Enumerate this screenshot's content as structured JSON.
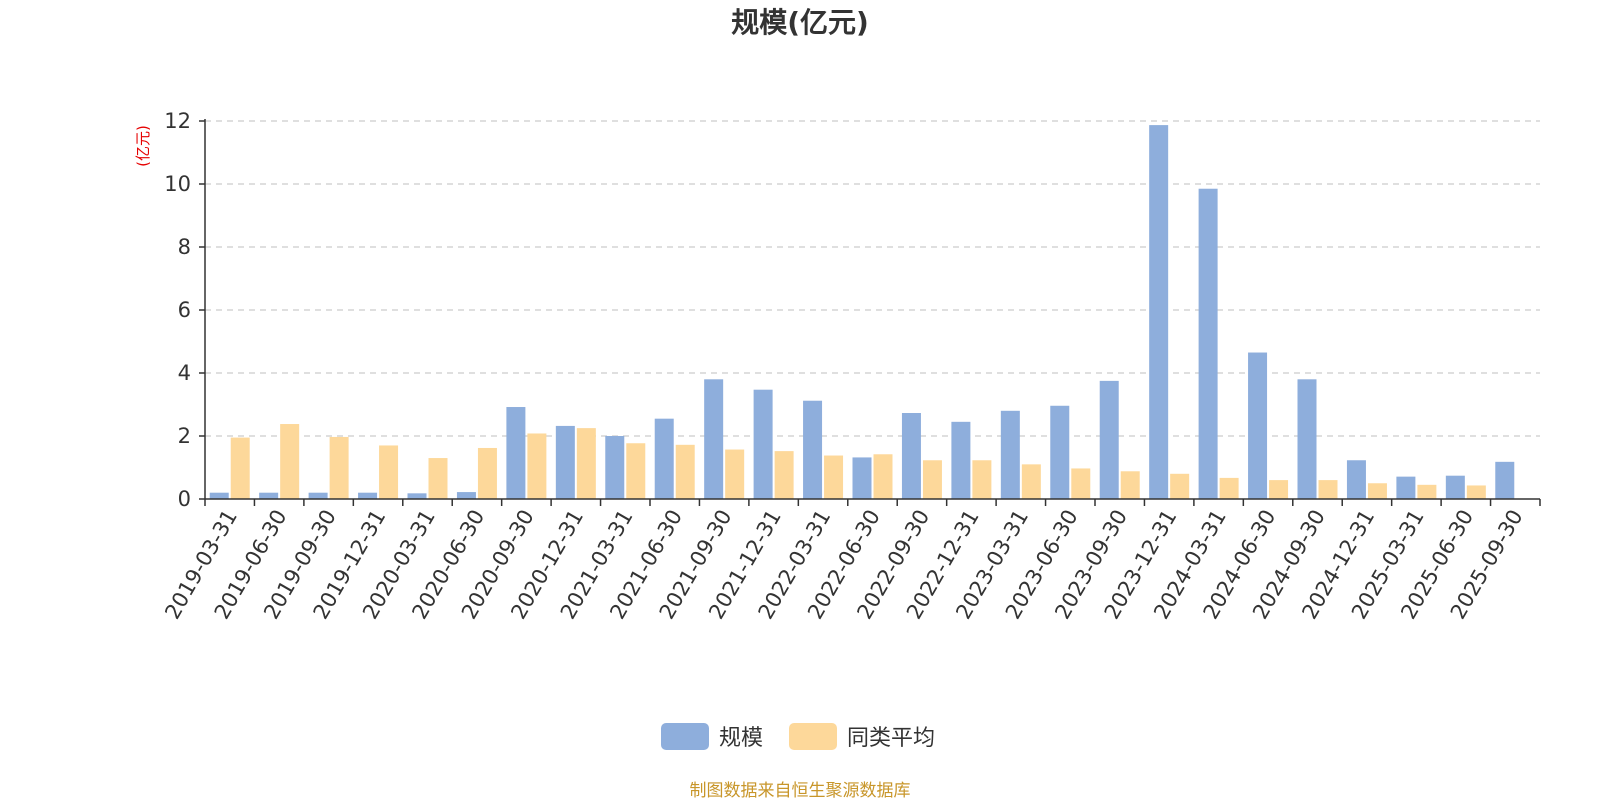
{
  "chart_data": {
    "type": "bar",
    "title": "规模(亿元)",
    "ylabel": "(亿元)",
    "ylim": [
      0,
      12
    ],
    "yticks": [
      0,
      2,
      4,
      6,
      8,
      10,
      12
    ],
    "grid": true,
    "legend_position": "bottom-center",
    "categories": [
      "2019-03-31",
      "2019-06-30",
      "2019-09-30",
      "2019-12-31",
      "2020-03-31",
      "2020-06-30",
      "2020-09-30",
      "2020-12-31",
      "2021-03-31",
      "2021-06-30",
      "2021-09-30",
      "2021-12-31",
      "2022-03-31",
      "2022-06-30",
      "2022-09-30",
      "2022-12-31",
      "2023-03-31",
      "2023-06-30",
      "2023-09-30",
      "2023-12-31",
      "2024-03-31",
      "2024-06-30",
      "2024-09-30",
      "2024-12-31",
      "2025-03-31",
      "2025-06-30",
      "2025-09-30"
    ],
    "series": [
      {
        "name": "规模",
        "color": "#8eaedc",
        "values": [
          0.2,
          0.2,
          0.2,
          0.2,
          0.18,
          0.22,
          2.92,
          2.32,
          2.0,
          2.55,
          3.8,
          3.47,
          3.12,
          1.32,
          2.73,
          2.45,
          2.8,
          2.96,
          3.75,
          11.87,
          9.85,
          4.65,
          3.8,
          1.23,
          0.71,
          0.74,
          1.18
        ]
      },
      {
        "name": "同类平均",
        "color": "#fdd89a",
        "values": [
          1.95,
          2.38,
          1.97,
          1.7,
          1.3,
          1.62,
          2.08,
          2.25,
          1.77,
          1.72,
          1.57,
          1.52,
          1.38,
          1.42,
          1.23,
          1.23,
          1.1,
          0.97,
          0.88,
          0.8,
          0.67,
          0.6,
          0.6,
          0.5,
          0.45,
          0.43,
          null
        ]
      }
    ]
  },
  "footer": {
    "source": "制图数据来自恒生聚源数据库"
  }
}
